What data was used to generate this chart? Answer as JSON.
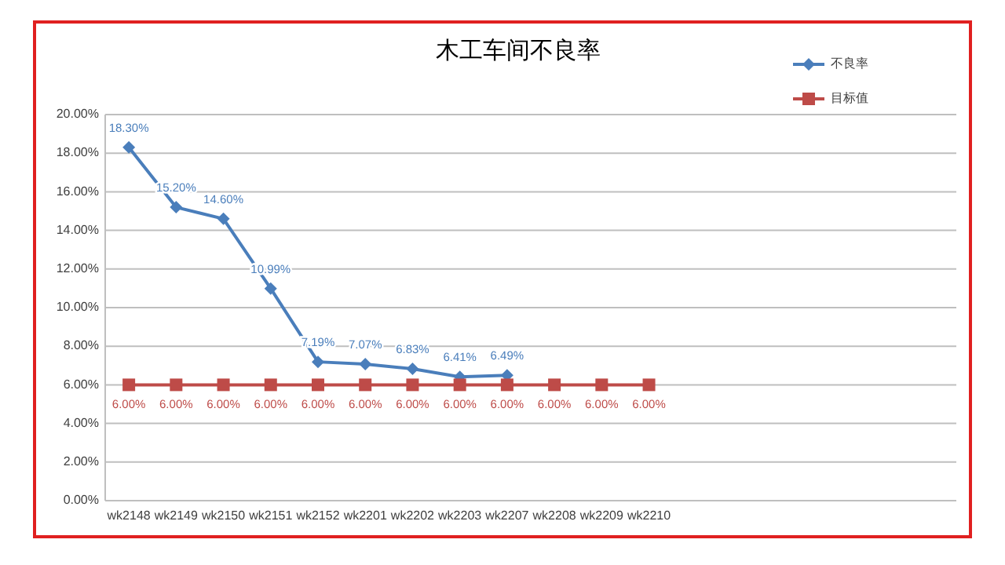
{
  "chart_data": {
    "type": "line",
    "title": "木工车间不良率",
    "categories": [
      "wk2148",
      "wk2149",
      "wk2150",
      "wk2151",
      "wk2152",
      "wk2201",
      "wk2202",
      "wk2203",
      "wk2207",
      "wk2208",
      "wk2209",
      "wk2210",
      null,
      null,
      null,
      null,
      null,
      null
    ],
    "series": [
      {
        "name": "不良率",
        "color": "#4a7ebb",
        "marker": "diamond",
        "values": [
          18.3,
          15.2,
          14.6,
          10.99,
          7.19,
          7.07,
          6.83,
          6.41,
          6.49,
          null,
          null,
          null,
          null,
          null,
          null,
          null,
          null,
          null
        ],
        "value_labels": [
          "18.30%",
          "15.20%",
          "14.60%",
          "10.99%",
          "7.19%",
          "7.07%",
          "6.83%",
          "6.41%",
          "6.49%",
          null,
          null,
          null,
          null,
          null,
          null,
          null,
          null,
          null
        ]
      },
      {
        "name": "目标值",
        "color": "#be4b48",
        "marker": "square",
        "values": [
          6,
          6,
          6,
          6,
          6,
          6,
          6,
          6,
          6,
          6,
          6,
          6,
          null,
          null,
          null,
          null,
          null,
          null
        ],
        "value_labels": [
          "6.00%",
          "6.00%",
          "6.00%",
          "6.00%",
          "6.00%",
          "6.00%",
          "6.00%",
          "6.00%",
          "6.00%",
          "6.00%",
          "6.00%",
          "6.00%",
          null,
          null,
          null,
          null,
          null,
          null
        ]
      }
    ],
    "ylim": [
      0,
      20
    ],
    "yticks": [
      {
        "value": 0,
        "label": "0.00%"
      },
      {
        "value": 2,
        "label": "2.00%"
      },
      {
        "value": 4,
        "label": "4.00%"
      },
      {
        "value": 6,
        "label": "6.00%"
      },
      {
        "value": 8,
        "label": "8.00%"
      },
      {
        "value": 10,
        "label": "10.00%"
      },
      {
        "value": 12,
        "label": "12.00%"
      },
      {
        "value": 14,
        "label": "14.00%"
      },
      {
        "value": 16,
        "label": "16.00%"
      },
      {
        "value": 18,
        "label": "18.00%"
      },
      {
        "value": 20,
        "label": "20.00%"
      }
    ],
    "grid": "y",
    "legend": "top right",
    "line_style": "solid"
  }
}
